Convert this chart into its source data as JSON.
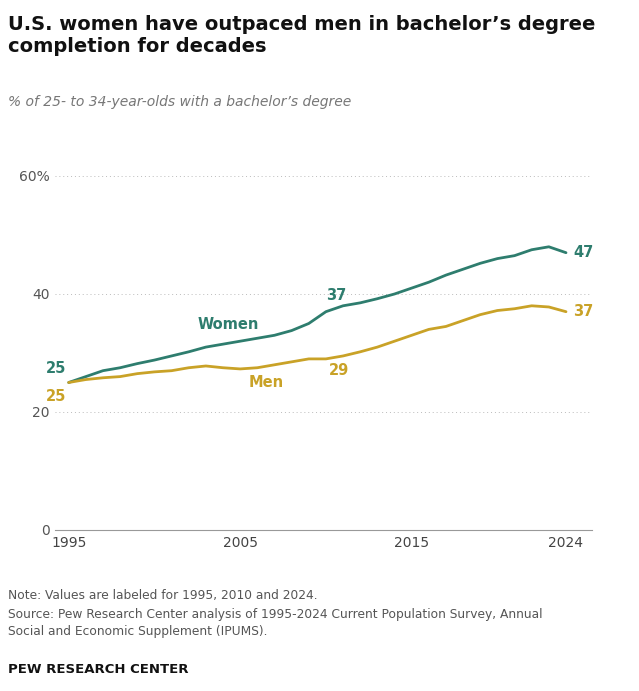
{
  "title": "U.S. women have outpaced men in bachelor’s degree\ncompletion for decades",
  "subtitle": "% of 25- to 34-year-olds with a bachelor’s degree",
  "women_color": "#2e7d6e",
  "men_color": "#c9a227",
  "background_color": "#ffffff",
  "years": [
    1995,
    1996,
    1997,
    1998,
    1999,
    2000,
    2001,
    2002,
    2003,
    2004,
    2005,
    2006,
    2007,
    2008,
    2009,
    2010,
    2011,
    2012,
    2013,
    2014,
    2015,
    2016,
    2017,
    2018,
    2019,
    2020,
    2021,
    2022,
    2023,
    2024
  ],
  "women": [
    25.0,
    26.0,
    27.0,
    27.5,
    28.2,
    28.8,
    29.5,
    30.2,
    31.0,
    31.5,
    32.0,
    32.5,
    33.0,
    33.8,
    35.0,
    37.0,
    38.0,
    38.5,
    39.2,
    40.0,
    41.0,
    42.0,
    43.2,
    44.2,
    45.2,
    46.0,
    46.5,
    47.5,
    48.0,
    47.0
  ],
  "men": [
    25.0,
    25.5,
    25.8,
    26.0,
    26.5,
    26.8,
    27.0,
    27.5,
    27.8,
    27.5,
    27.3,
    27.5,
    28.0,
    28.5,
    29.0,
    29.0,
    29.5,
    30.2,
    31.0,
    32.0,
    33.0,
    34.0,
    34.5,
    35.5,
    36.5,
    37.2,
    37.5,
    38.0,
    37.8,
    37.0
  ],
  "note": "Note: Values are labeled for 1995, 2010 and 2024.",
  "source_line1": "Source: Pew Research Center analysis of 1995-2024 Current Population Survey, Annual",
  "source_line2": "Social and Economic Supplement (IPUMS).",
  "footer": "PEW RESEARCH CENTER",
  "xlim_left": 1994.2,
  "xlim_right": 2025.5,
  "ylim_bottom": 0,
  "ylim_top": 65,
  "line_width": 2.0
}
